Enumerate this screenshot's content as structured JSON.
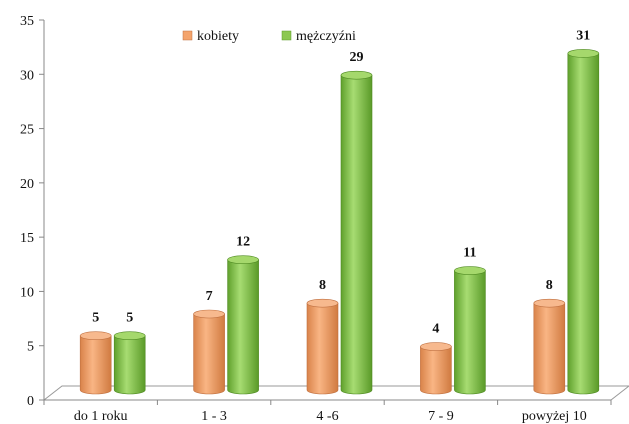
{
  "chart_data": {
    "type": "bar",
    "categories": [
      "do 1 roku",
      "1 - 3",
      "4 -6",
      "7 - 9",
      "powyżej 10"
    ],
    "series": [
      {
        "name": "kobiety",
        "values": [
          5,
          7,
          8,
          4,
          8
        ],
        "color": "#f4a46c"
      },
      {
        "name": "mężczyźni",
        "values": [
          5,
          12,
          29,
          11,
          31
        ],
        "color": "#8cc850"
      }
    ],
    "ylim": [
      0,
      35
    ],
    "yticks": [
      "0",
      "5",
      "10",
      "15",
      "20",
      "25",
      "30",
      "35"
    ],
    "title": "",
    "xlabel": "",
    "ylabel": "",
    "legend": "top-center",
    "grid": false,
    "style": "3d-cylinder"
  }
}
